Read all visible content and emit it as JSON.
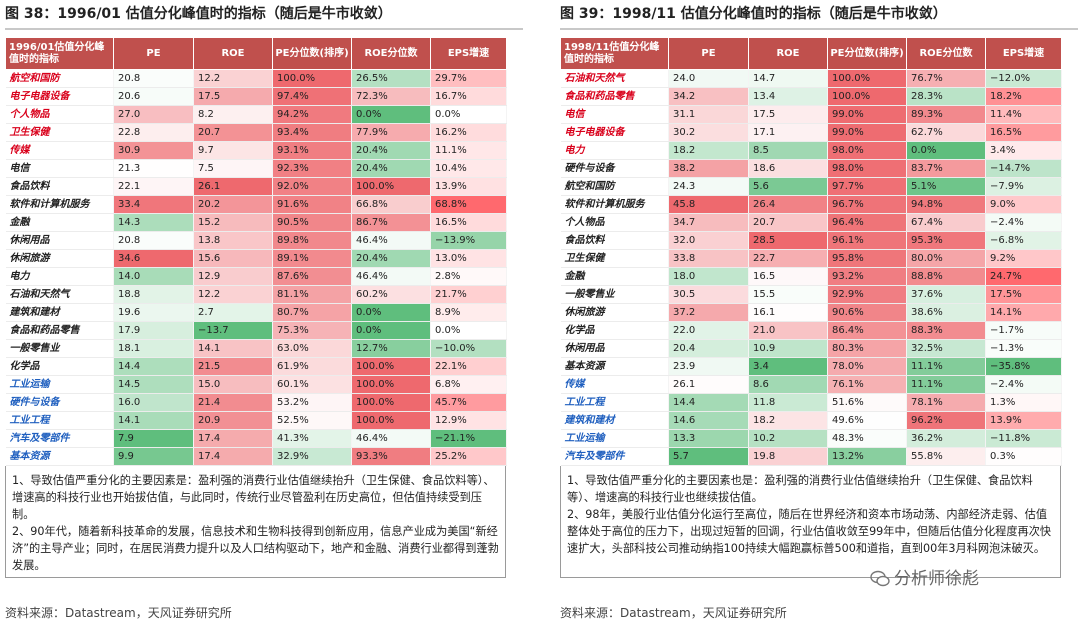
{
  "left": {
    "title": "图 38：1996/01 估值分化峰值时的指标（随后是牛市收敛）",
    "headers": [
      "1996/01估值分化峰值时的指标",
      "PE",
      "ROE",
      "PE分位数(排序)",
      "ROE分位数",
      "EPS增速"
    ],
    "rows": [
      {
        "name": "航空和国防",
        "color": "red",
        "pe": "20.8",
        "roe": "12.2",
        "pe_pct": "100.0%",
        "roe_pct": "26.5%",
        "eps": "29.7%"
      },
      {
        "name": "电子电器设备",
        "color": "red",
        "pe": "20.6",
        "roe": "17.5",
        "pe_pct": "97.4%",
        "roe_pct": "72.3%",
        "eps": "16.7%"
      },
      {
        "name": "个人物品",
        "color": "red",
        "pe": "27.0",
        "roe": "8.2",
        "pe_pct": "94.2%",
        "roe_pct": "0.0%",
        "eps": "0.0%"
      },
      {
        "name": "卫生保健",
        "color": "red",
        "pe": "22.8",
        "roe": "20.7",
        "pe_pct": "93.4%",
        "roe_pct": "77.9%",
        "eps": "16.2%"
      },
      {
        "name": "传媒",
        "color": "red",
        "pe": "30.9",
        "roe": "9.7",
        "pe_pct": "93.1%",
        "roe_pct": "20.4%",
        "eps": "11.1%"
      },
      {
        "name": "电信",
        "color": "black",
        "pe": "21.3",
        "roe": "7.5",
        "pe_pct": "92.3%",
        "roe_pct": "20.4%",
        "eps": "10.4%"
      },
      {
        "name": "食品饮料",
        "color": "black",
        "pe": "22.1",
        "roe": "26.1",
        "pe_pct": "92.0%",
        "roe_pct": "100.0%",
        "eps": "13.9%"
      },
      {
        "name": "软件和计算机服务",
        "color": "black",
        "pe": "33.4",
        "roe": "20.2",
        "pe_pct": "91.6%",
        "roe_pct": "66.8%",
        "eps": "68.8%"
      },
      {
        "name": "金融",
        "color": "black",
        "pe": "14.3",
        "roe": "15.2",
        "pe_pct": "90.5%",
        "roe_pct": "86.7%",
        "eps": "16.5%"
      },
      {
        "name": "休闲用品",
        "color": "black",
        "pe": "20.8",
        "roe": "13.8",
        "pe_pct": "89.8%",
        "roe_pct": "46.4%",
        "eps": "−13.9%"
      },
      {
        "name": "休闲旅游",
        "color": "black",
        "pe": "34.6",
        "roe": "15.6",
        "pe_pct": "89.1%",
        "roe_pct": "20.4%",
        "eps": "13.0%"
      },
      {
        "name": "电力",
        "color": "black",
        "pe": "14.0",
        "roe": "12.9",
        "pe_pct": "87.6%",
        "roe_pct": "46.4%",
        "eps": "2.8%"
      },
      {
        "name": "石油和天然气",
        "color": "black",
        "pe": "18.8",
        "roe": "12.2",
        "pe_pct": "81.1%",
        "roe_pct": "60.2%",
        "eps": "21.7%"
      },
      {
        "name": "建筑和建材",
        "color": "black",
        "pe": "19.6",
        "roe": "2.7",
        "pe_pct": "80.7%",
        "roe_pct": "0.0%",
        "eps": "8.9%"
      },
      {
        "name": "食品和药品零售",
        "color": "black",
        "pe": "17.9",
        "roe": "−13.7",
        "pe_pct": "75.3%",
        "roe_pct": "0.0%",
        "eps": "0.0%"
      },
      {
        "name": "一般零售业",
        "color": "black",
        "pe": "18.1",
        "roe": "14.1",
        "pe_pct": "63.0%",
        "roe_pct": "12.7%",
        "eps": "−10.0%"
      },
      {
        "name": "化学品",
        "color": "black",
        "pe": "14.4",
        "roe": "21.5",
        "pe_pct": "61.9%",
        "roe_pct": "100.0%",
        "eps": "22.1%"
      },
      {
        "name": "工业运输",
        "color": "blue",
        "pe": "14.5",
        "roe": "15.0",
        "pe_pct": "60.1%",
        "roe_pct": "100.0%",
        "eps": "6.8%"
      },
      {
        "name": "硬件与设备",
        "color": "blue",
        "pe": "16.0",
        "roe": "21.4",
        "pe_pct": "53.2%",
        "roe_pct": "100.0%",
        "eps": "45.7%"
      },
      {
        "name": "工业工程",
        "color": "blue",
        "pe": "14.1",
        "roe": "20.9",
        "pe_pct": "52.5%",
        "roe_pct": "100.0%",
        "eps": "12.9%"
      },
      {
        "name": "汽车及零部件",
        "color": "blue",
        "pe": "7.9",
        "roe": "17.4",
        "pe_pct": "41.3%",
        "roe_pct": "46.4%",
        "eps": "−21.1%"
      },
      {
        "name": "基本资源",
        "color": "blue",
        "pe": "9.9",
        "roe": "17.4",
        "pe_pct": "32.9%",
        "roe_pct": "93.3%",
        "eps": "25.2%"
      }
    ],
    "note1": "1、导致估值严重分化的主要因素是：盈利强的消费行业估值继续抬升（卫生保健、食品饮料等）、增速高的科技行业也开始拔估值，与此同时，传统行业尽管盈利在历史高位，但估值持续受到压制。",
    "note2": "2、90年代，随着新科技革命的发展，信息技术和生物科技得到创新应用，信息产业成为美国“新经济”的主导产业；同时，在居民消费力提升以及人口结构驱动下，地产和金融、消费行业都得到蓬勃发展。",
    "source": "资料来源：Datastream，天风证券研究所"
  },
  "right": {
    "title": "图 39：1998/11 估值分化峰值时的指标（随后是牛市收敛）",
    "headers": [
      "1998/11估值分化峰值时的指标",
      "PE",
      "ROE",
      "PE分位数(排序)",
      "ROE分位数",
      "EPS增速"
    ],
    "rows": [
      {
        "name": "石油和天然气",
        "color": "red",
        "pe": "24.0",
        "roe": "14.7",
        "pe_pct": "100.0%",
        "roe_pct": "76.7%",
        "eps": "−12.0%"
      },
      {
        "name": "食品和药品零售",
        "color": "red",
        "pe": "34.2",
        "roe": "13.4",
        "pe_pct": "100.0%",
        "roe_pct": "28.3%",
        "eps": "18.2%"
      },
      {
        "name": "电信",
        "color": "red",
        "pe": "31.1",
        "roe": "17.5",
        "pe_pct": "99.0%",
        "roe_pct": "89.3%",
        "eps": "11.4%"
      },
      {
        "name": "电子电器设备",
        "color": "red",
        "pe": "30.2",
        "roe": "17.1",
        "pe_pct": "99.0%",
        "roe_pct": "62.7%",
        "eps": "16.5%"
      },
      {
        "name": "电力",
        "color": "red",
        "pe": "18.2",
        "roe": "8.5",
        "pe_pct": "98.0%",
        "roe_pct": "0.0%",
        "eps": "3.4%"
      },
      {
        "name": "硬件与设备",
        "color": "black",
        "pe": "38.2",
        "roe": "18.6",
        "pe_pct": "98.0%",
        "roe_pct": "83.7%",
        "eps": "−14.7%"
      },
      {
        "name": "航空和国防",
        "color": "black",
        "pe": "24.3",
        "roe": "5.6",
        "pe_pct": "97.7%",
        "roe_pct": "5.1%",
        "eps": "−7.9%"
      },
      {
        "name": "软件和计算机服务",
        "color": "black",
        "pe": "45.8",
        "roe": "26.4",
        "pe_pct": "96.7%",
        "roe_pct": "94.8%",
        "eps": "9.0%"
      },
      {
        "name": "个人物品",
        "color": "black",
        "pe": "34.7",
        "roe": "20.7",
        "pe_pct": "96.4%",
        "roe_pct": "67.4%",
        "eps": "−2.4%"
      },
      {
        "name": "食品饮料",
        "color": "black",
        "pe": "32.0",
        "roe": "28.5",
        "pe_pct": "96.1%",
        "roe_pct": "95.3%",
        "eps": "−6.8%"
      },
      {
        "name": "卫生保健",
        "color": "black",
        "pe": "33.8",
        "roe": "22.7",
        "pe_pct": "95.8%",
        "roe_pct": "80.0%",
        "eps": "9.2%"
      },
      {
        "name": "金融",
        "color": "black",
        "pe": "18.0",
        "roe": "16.5",
        "pe_pct": "93.2%",
        "roe_pct": "88.8%",
        "eps": "24.7%"
      },
      {
        "name": "一般零售业",
        "color": "black",
        "pe": "30.5",
        "roe": "15.5",
        "pe_pct": "92.9%",
        "roe_pct": "37.6%",
        "eps": "17.5%"
      },
      {
        "name": "休闲旅游",
        "color": "black",
        "pe": "37.2",
        "roe": "16.1",
        "pe_pct": "90.6%",
        "roe_pct": "38.6%",
        "eps": "14.1%"
      },
      {
        "name": "化学品",
        "color": "black",
        "pe": "22.0",
        "roe": "21.0",
        "pe_pct": "86.4%",
        "roe_pct": "88.3%",
        "eps": "−1.7%"
      },
      {
        "name": "休闲用品",
        "color": "black",
        "pe": "20.4",
        "roe": "10.9",
        "pe_pct": "80.3%",
        "roe_pct": "32.5%",
        "eps": "−1.3%"
      },
      {
        "name": "基本资源",
        "color": "black",
        "pe": "23.9",
        "roe": "3.4",
        "pe_pct": "78.0%",
        "roe_pct": "11.1%",
        "eps": "−35.8%"
      },
      {
        "name": "传媒",
        "color": "blue",
        "pe": "26.1",
        "roe": "8.6",
        "pe_pct": "76.1%",
        "roe_pct": "11.1%",
        "eps": "−2.4%"
      },
      {
        "name": "工业工程",
        "color": "blue",
        "pe": "14.4",
        "roe": "11.8",
        "pe_pct": "51.6%",
        "roe_pct": "78.1%",
        "eps": "1.3%"
      },
      {
        "name": "建筑和建材",
        "color": "blue",
        "pe": "14.6",
        "roe": "18.2",
        "pe_pct": "49.6%",
        "roe_pct": "96.2%",
        "eps": "13.9%"
      },
      {
        "name": "工业运输",
        "color": "blue",
        "pe": "13.3",
        "roe": "10.2",
        "pe_pct": "48.3%",
        "roe_pct": "36.2%",
        "eps": "−11.8%"
      },
      {
        "name": "汽车及零部件",
        "color": "blue",
        "pe": "5.7",
        "roe": "19.8",
        "pe_pct": "13.2%",
        "roe_pct": "55.8%",
        "eps": "0.3%"
      }
    ],
    "note1": "1、导致估值严重分化的主要因素也是：盈利强的消费行业估值继续抬升（卫生保健、食品饮料等）、增速高的科技行业也继续拔估值。",
    "note2": "2、98年，美股行业估值分化运行至高位，随后在世界经济和资本市场动荡、内部经济走弱、估值整体处于高位的压力下，出现过短暂的回调，行业估值收敛至99年中，但随后估值分化程度再次快速扩大，头部科技公司推动纳指100持续大幅跑赢标普500和道指，直到00年3月科网泡沫破灭。",
    "watermark": "分析师徐彪",
    "source": "资料来源：Datastream，天风证券研究所"
  }
}
